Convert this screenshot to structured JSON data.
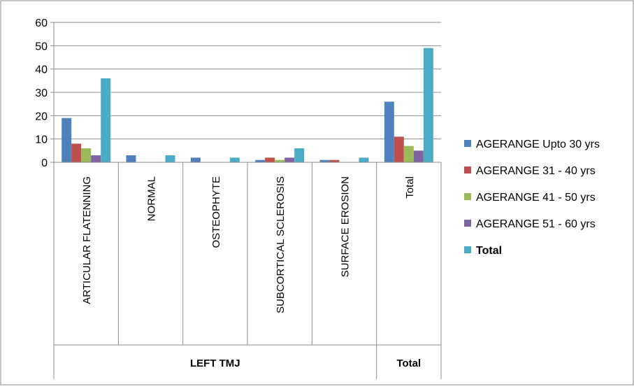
{
  "chart_data": {
    "type": "bar",
    "categories": [
      "ARTICULAR FLATENNING",
      "NORMAL",
      "OSTEOPHYTE",
      "SUBCORTICAL SCLEROSIS",
      "SURFACE EROSION",
      "Total"
    ],
    "groups": [
      {
        "label": "LEFT TMJ",
        "categories": [
          "ARTICULAR FLATENNING",
          "NORMAL",
          "OSTEOPHYTE",
          "SUBCORTICAL SCLEROSIS",
          "SURFACE EROSION"
        ]
      },
      {
        "label": "Total",
        "categories": [
          "Total"
        ]
      }
    ],
    "series": [
      {
        "name": "AGERANGE Upto 30 yrs",
        "color": "#4F81BD",
        "values": [
          19,
          3,
          2,
          1,
          1,
          26
        ]
      },
      {
        "name": "AGERANGE 31 - 40 yrs",
        "color": "#C0504D",
        "values": [
          8,
          0,
          0,
          2,
          1,
          11
        ]
      },
      {
        "name": "AGERANGE 41 - 50 yrs",
        "color": "#9BBB59",
        "values": [
          6,
          0,
          0,
          1,
          0,
          7
        ]
      },
      {
        "name": "AGERANGE 51 - 60 yrs",
        "color": "#8064A2",
        "values": [
          3,
          0,
          0,
          2,
          0,
          5
        ]
      },
      {
        "name": "Total",
        "color": "#4BACC6",
        "values": [
          36,
          3,
          2,
          6,
          2,
          49
        ]
      }
    ],
    "yticks": [
      0,
      10,
      20,
      30,
      40,
      50,
      60
    ],
    "ylim": [
      0,
      60
    ],
    "title": "",
    "xlabel": "",
    "ylabel": "",
    "grid": true,
    "legend_position": "right"
  }
}
